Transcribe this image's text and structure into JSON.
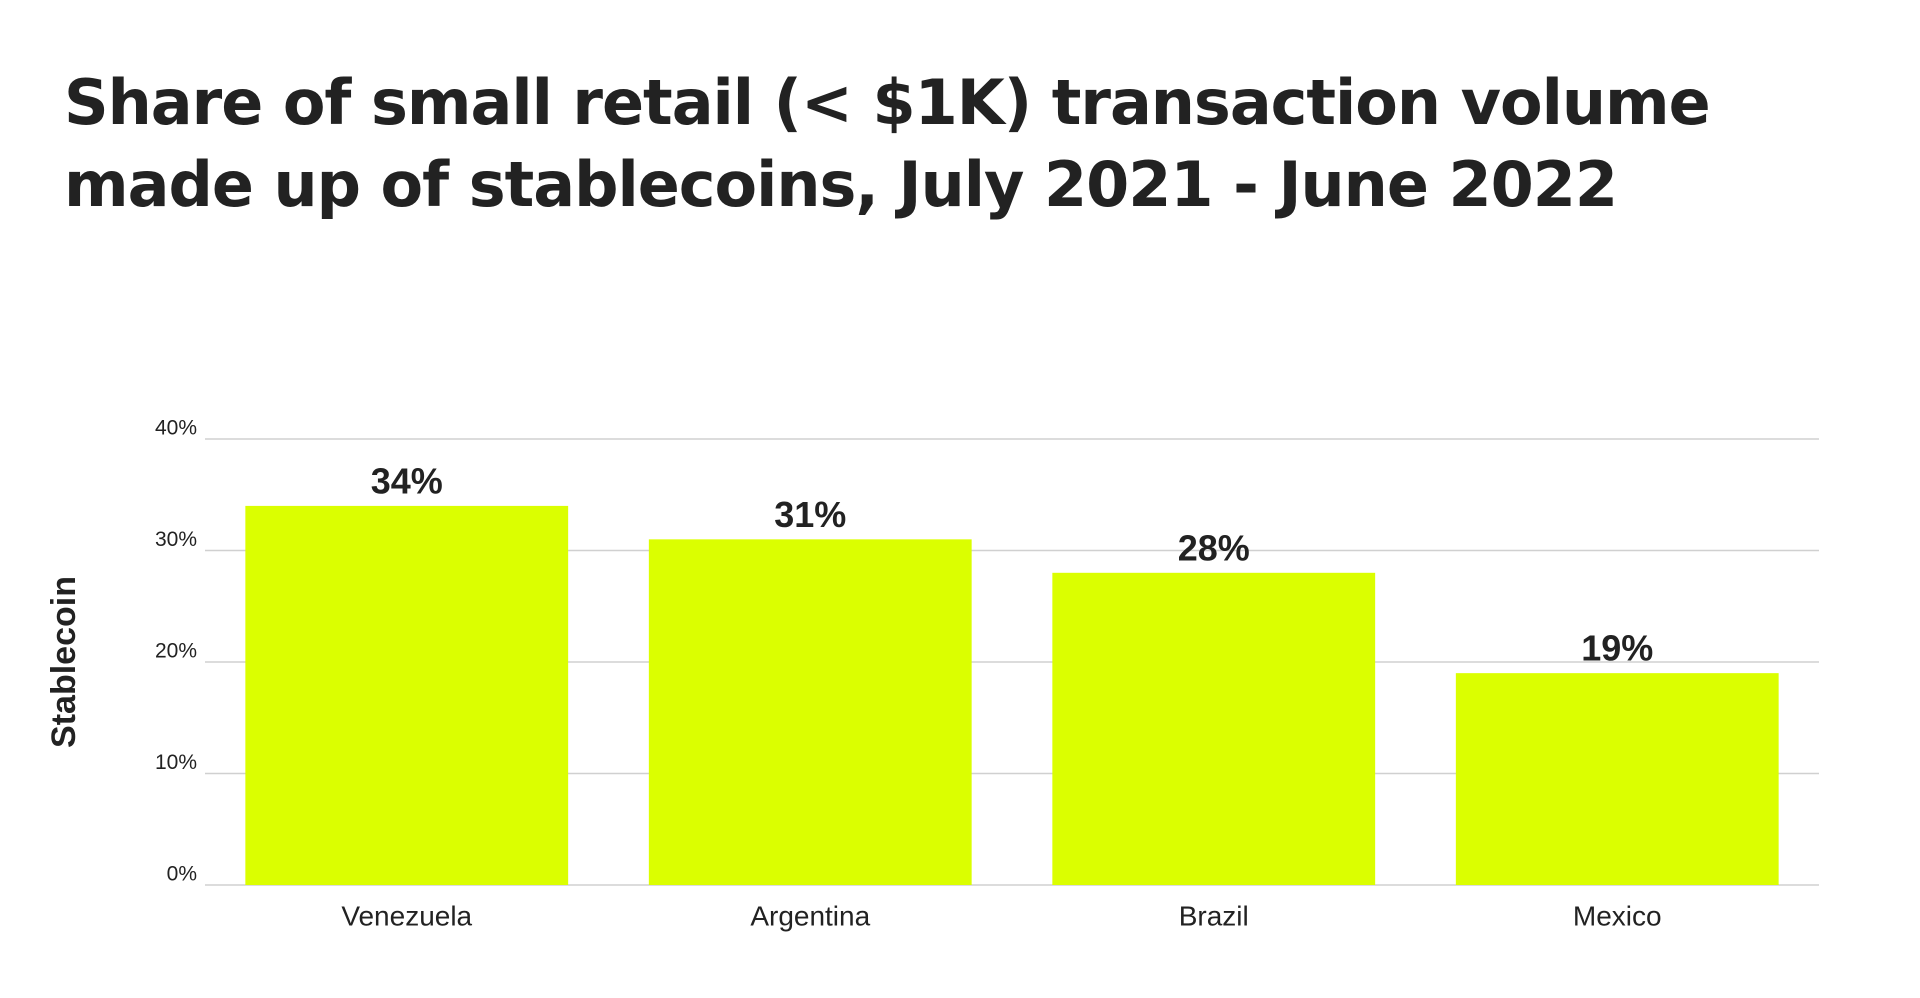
{
  "chart_data": {
    "type": "bar",
    "title": "Share of small retail (< $1K) transaction volume made up of stablecoins, July 2021 - June 2022",
    "y_label": "Stablecoin",
    "categories": [
      "Venezuela",
      "Argentina",
      "Brazil",
      "Mexico"
    ],
    "values": [
      34,
      31,
      28,
      19
    ],
    "value_labels": [
      "34%",
      "31%",
      "28%",
      "19%"
    ],
    "color": "#dbff00",
    "ylim": [
      0,
      40
    ],
    "yticks": [
      {
        "value": 0,
        "label": "0%"
      },
      {
        "value": 10,
        "label": "10%"
      },
      {
        "value": 20,
        "label": "20%"
      },
      {
        "value": 30,
        "label": "30%"
      },
      {
        "value": 40,
        "label": "40%"
      }
    ],
    "grid": true
  }
}
